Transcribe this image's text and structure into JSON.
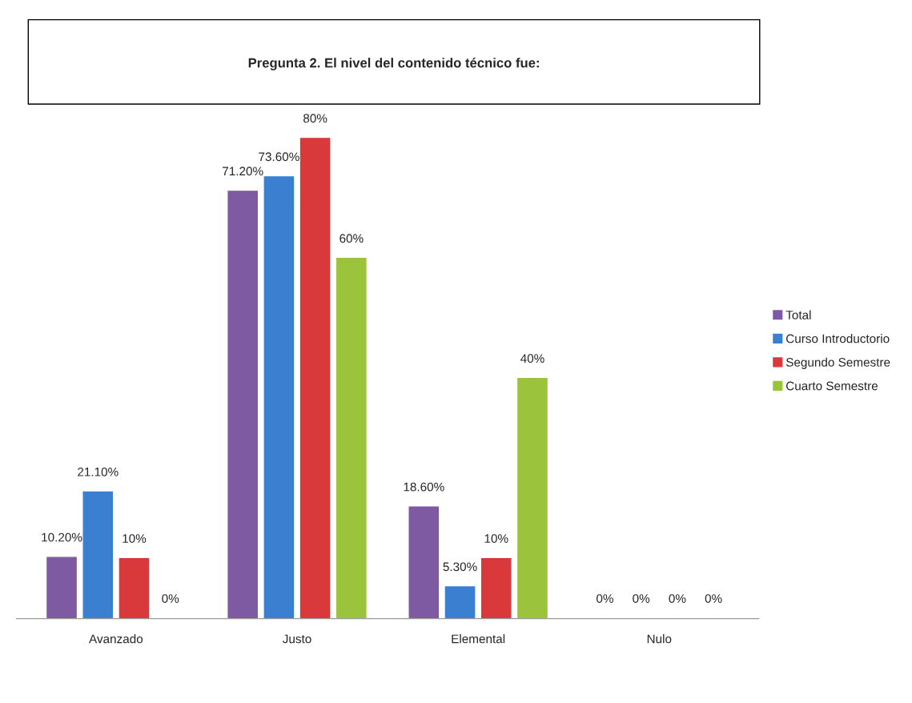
{
  "chart_data": {
    "type": "bar",
    "title": "Pregunta 2. El nivel del contenido técnico fue:",
    "categories": [
      "Avanzado",
      "Justo",
      "Elemental",
      "Nulo"
    ],
    "series": [
      {
        "name": "Total",
        "color": "#7e5aa2",
        "values": [
          10.2,
          71.2,
          18.6,
          0
        ],
        "value_labels": [
          "10.20%",
          "71.20%",
          "18.60%",
          "0%"
        ]
      },
      {
        "name": "Curso Introductorio",
        "color": "#3a7fd0",
        "values": [
          21.1,
          73.6,
          5.3,
          0
        ],
        "value_labels": [
          "21.10%",
          "73.60%",
          "5.30%",
          "0%"
        ]
      },
      {
        "name": "Segundo Semestre",
        "color": "#d9393a",
        "values": [
          10,
          80,
          10,
          0
        ],
        "value_labels": [
          "10%",
          "80%",
          "10%",
          "0%"
        ]
      },
      {
        "name": "Cuarto Semestre",
        "color": "#9bc33b",
        "values": [
          0,
          60,
          40,
          0
        ],
        "value_labels": [
          "0%",
          "60%",
          "40%",
          "0%"
        ]
      }
    ],
    "legend": "right",
    "grid": false
  }
}
